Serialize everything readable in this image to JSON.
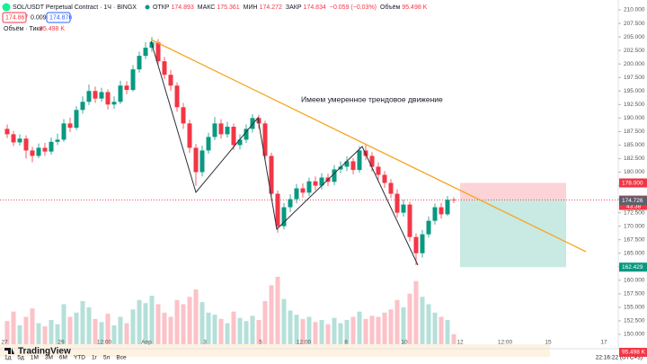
{
  "header": {
    "symbol": "SOL/USDT Perpetual Contract · 1Ч · BINGX",
    "ohlc": [
      {
        "label": "ОТКР",
        "value": "174.893"
      },
      {
        "label": "МАКС",
        "value": "175.361"
      },
      {
        "label": "МИН",
        "value": "174.272"
      },
      {
        "label": "ЗАКР",
        "value": "174.834"
      }
    ],
    "change": "−0.059 (−0.03%)",
    "volume_label": "Объём",
    "volume_value": "95.498 K",
    "sell": "174.867",
    "spread": "0.009",
    "buy": "174.876"
  },
  "indicator": {
    "name": "Объём · Тики",
    "value": "95.498 K"
  },
  "chart_data": {
    "type": "candlestick",
    "up_color": "#089981",
    "down_color": "#f23645",
    "open": [
      188,
      187,
      185.5,
      186.2,
      184,
      183,
      184.5,
      183.8,
      185.6,
      186,
      189,
      188.2,
      191.5,
      193,
      195,
      193.6,
      194.8,
      192.5,
      193,
      196,
      195.2,
      199,
      201.5,
      203,
      204,
      200.5,
      198,
      196,
      192,
      189,
      184.5,
      180,
      184,
      186.5,
      189,
      187,
      188.4,
      185,
      186,
      188,
      190,
      189,
      183,
      176,
      170,
      173.5,
      175,
      177,
      176.2,
      178.3,
      177.5,
      179,
      178.2,
      180.5,
      181,
      182,
      180.4,
      184,
      183,
      181,
      179.5,
      178,
      176,
      172.5,
      174,
      168,
      165,
      168.5,
      171,
      173.5,
      172.2,
      174.893
    ],
    "high": [
      188.8,
      187.6,
      187,
      186.8,
      184.7,
      185.3,
      185.4,
      186.4,
      187.1,
      189.8,
      190.1,
      192.2,
      194,
      196.2,
      195.8,
      195.6,
      195.3,
      194,
      196.9,
      196.8,
      199.8,
      202.3,
      204,
      205,
      204.6,
      201.3,
      198.9,
      196.6,
      192.8,
      189.7,
      185.2,
      184.9,
      187.3,
      190.2,
      189.8,
      189.3,
      189,
      187,
      188.8,
      190.7,
      190.6,
      189.5,
      183.6,
      176.6,
      174.3,
      175.9,
      177.8,
      177.9,
      179,
      179.2,
      179.8,
      179.7,
      181.3,
      182,
      182.9,
      182.6,
      184.8,
      185,
      183.7,
      181.8,
      180.2,
      178.7,
      176.8,
      174.9,
      174.5,
      168.7,
      169.3,
      171.8,
      174.2,
      174.3,
      175.6,
      175.361
    ],
    "low": [
      186.3,
      184.8,
      184.9,
      182.5,
      181.8,
      182.6,
      183,
      183.2,
      185,
      185.6,
      187.4,
      187.8,
      190.8,
      192.4,
      192.8,
      193,
      191.6,
      191.7,
      192.6,
      194.4,
      194.9,
      198.4,
      200.9,
      202.2,
      199.6,
      197.2,
      195,
      191.2,
      188,
      183.6,
      177.5,
      179.2,
      183.4,
      185.9,
      186.2,
      186.4,
      184.1,
      184.2,
      185.4,
      187.3,
      188,
      182.1,
      175,
      168.8,
      169.4,
      172.6,
      174.2,
      175.3,
      175.6,
      176.7,
      176.8,
      177.4,
      177.6,
      179.8,
      180.2,
      179.6,
      179.9,
      182.2,
      180.1,
      178.6,
      177.1,
      175.2,
      171.6,
      171.8,
      167.2,
      162.8,
      164.2,
      167.9,
      170.3,
      171.4,
      171.9,
      174.272
    ],
    "close": [
      187,
      185.5,
      186.2,
      184,
      183,
      184.5,
      183.8,
      185.6,
      186,
      189,
      188.2,
      191.5,
      193,
      195,
      193.6,
      194.8,
      192.5,
      193,
      196,
      195.2,
      199,
      201.5,
      203,
      204,
      200.5,
      198,
      196,
      192,
      189,
      184.5,
      180,
      184,
      186.5,
      189,
      187,
      188.4,
      185,
      186,
      188,
      190,
      189,
      183,
      176,
      170,
      173.5,
      175,
      177,
      176.2,
      178.3,
      177.5,
      179,
      178.2,
      180.5,
      181,
      182,
      180.4,
      184,
      183,
      181,
      179.5,
      178,
      176,
      172.5,
      174,
      168,
      165,
      168.5,
      171,
      173.5,
      172.2,
      174.893,
      174.834
    ],
    "volume": [
      220,
      310,
      180,
      260,
      340,
      200,
      170,
      230,
      190,
      380,
      260,
      300,
      410,
      350,
      240,
      210,
      290,
      180,
      260,
      200,
      330,
      420,
      390,
      460,
      380,
      300,
      260,
      420,
      380,
      450,
      520,
      400,
      300,
      280,
      240,
      200,
      310,
      250,
      220,
      270,
      230,
      410,
      560,
      640,
      430,
      320,
      280,
      240,
      260,
      210,
      230,
      190,
      250,
      200,
      230,
      260,
      310,
      240,
      270,
      260,
      300,
      330,
      420,
      350,
      480,
      600,
      450,
      380,
      300,
      260,
      230,
      95.498
    ],
    "ylim": [
      150,
      210
    ],
    "yticks": [
      {
        "value": 150,
        "label": "150.000"
      },
      {
        "value": 152.5,
        "label": "152.500"
      },
      {
        "value": 155,
        "label": "155.000"
      },
      {
        "value": 157.5,
        "label": "157.500"
      },
      {
        "value": 160,
        "label": "160.000"
      },
      {
        "value": 162.5,
        "label": "162.500"
      },
      {
        "value": 165,
        "label": "165.000"
      },
      {
        "value": 167.5,
        "label": "167.500"
      },
      {
        "value": 170,
        "label": "170.000"
      },
      {
        "value": 172.5,
        "label": "172.500"
      },
      {
        "value": 175,
        "label": "175.000"
      },
      {
        "value": 177.5,
        "label": "177.500"
      },
      {
        "value": 180,
        "label": "180.000"
      },
      {
        "value": 182.5,
        "label": "182.500"
      },
      {
        "value": 185,
        "label": "185.000"
      },
      {
        "value": 187.5,
        "label": "187.500"
      },
      {
        "value": 190,
        "label": "190.000"
      },
      {
        "value": 192.5,
        "label": "192.500"
      },
      {
        "value": 195,
        "label": "195.000"
      },
      {
        "value": 197.5,
        "label": "197.500"
      },
      {
        "value": 200,
        "label": "200.000"
      },
      {
        "value": 202.5,
        "label": "202.500"
      },
      {
        "value": 205,
        "label": "205.000"
      },
      {
        "value": 207.5,
        "label": "207.500"
      },
      {
        "value": 210,
        "label": "210.000"
      }
    ],
    "x_labels": [
      "27",
      "29",
      "12:00",
      "Апр",
      "3",
      "5",
      "12:00",
      "8",
      "10",
      "12",
      "12:00",
      "15",
      "17"
    ],
    "annotation": "Имеем умеренное трендовое движение",
    "position": {
      "stop": {
        "value": 178,
        "label": "178.000"
      },
      "entry": {
        "value": 174.834,
        "label": "174.834"
      },
      "target": {
        "value": 162.429,
        "label": "162.429"
      }
    },
    "countdown": "43:38",
    "bid": {
      "value": 174.726,
      "label": "174.726"
    }
  },
  "toolbar": {
    "ranges": [
      "1д",
      "5д",
      "1М",
      "3М",
      "6М",
      "YTD",
      "1г",
      "5л",
      "Все"
    ],
    "time": "22:16:22 (UTC+3)"
  },
  "logo": "TradingView"
}
